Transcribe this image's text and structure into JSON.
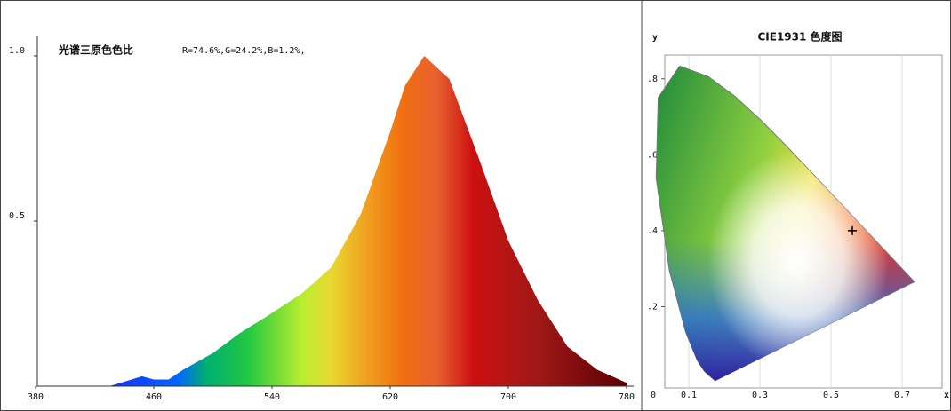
{
  "chart_data": [
    {
      "type": "area",
      "title": "光谱三原色色比",
      "subtitle": "R=74.6%,G=24.2%,B=1.2%,",
      "x": [
        430,
        445,
        452,
        460,
        470,
        480,
        500,
        518,
        536,
        560,
        580,
        600,
        620,
        630,
        643,
        660,
        680,
        700,
        720,
        740,
        760,
        780
      ],
      "values": [
        0,
        0.02,
        0.03,
        0.02,
        0.02,
        0.05,
        0.1,
        0.16,
        0.21,
        0.28,
        0.36,
        0.52,
        0.77,
        0.91,
        1.0,
        0.93,
        0.69,
        0.44,
        0.26,
        0.12,
        0.05,
        0.01
      ],
      "xlim": [
        380,
        780
      ],
      "xticks": [
        380,
        460,
        540,
        620,
        700,
        780
      ],
      "ylim": [
        0,
        1
      ],
      "yticks": [
        0.5,
        {
          "value": 1,
          "label": "1.0"
        }
      ]
    },
    {
      "type": "chromaticity",
      "title": "CIE1931 色度图",
      "xlabel": "x",
      "ylabel": "y",
      "xlim": [
        0,
        0.8
      ],
      "xticks": [
        0,
        0.1,
        0.3,
        0.5,
        0.7
      ],
      "ylim": [
        0,
        0.9
      ],
      "yticks": [
        {
          "value": 0.2,
          "label": ".2"
        },
        {
          "value": 0.4,
          "label": ".4"
        },
        {
          "value": 0.6,
          "label": ".6"
        },
        {
          "value": 0.8,
          "label": ".8"
        }
      ],
      "point": {
        "x": 0.56,
        "y": 0.4
      },
      "grid": true
    }
  ]
}
